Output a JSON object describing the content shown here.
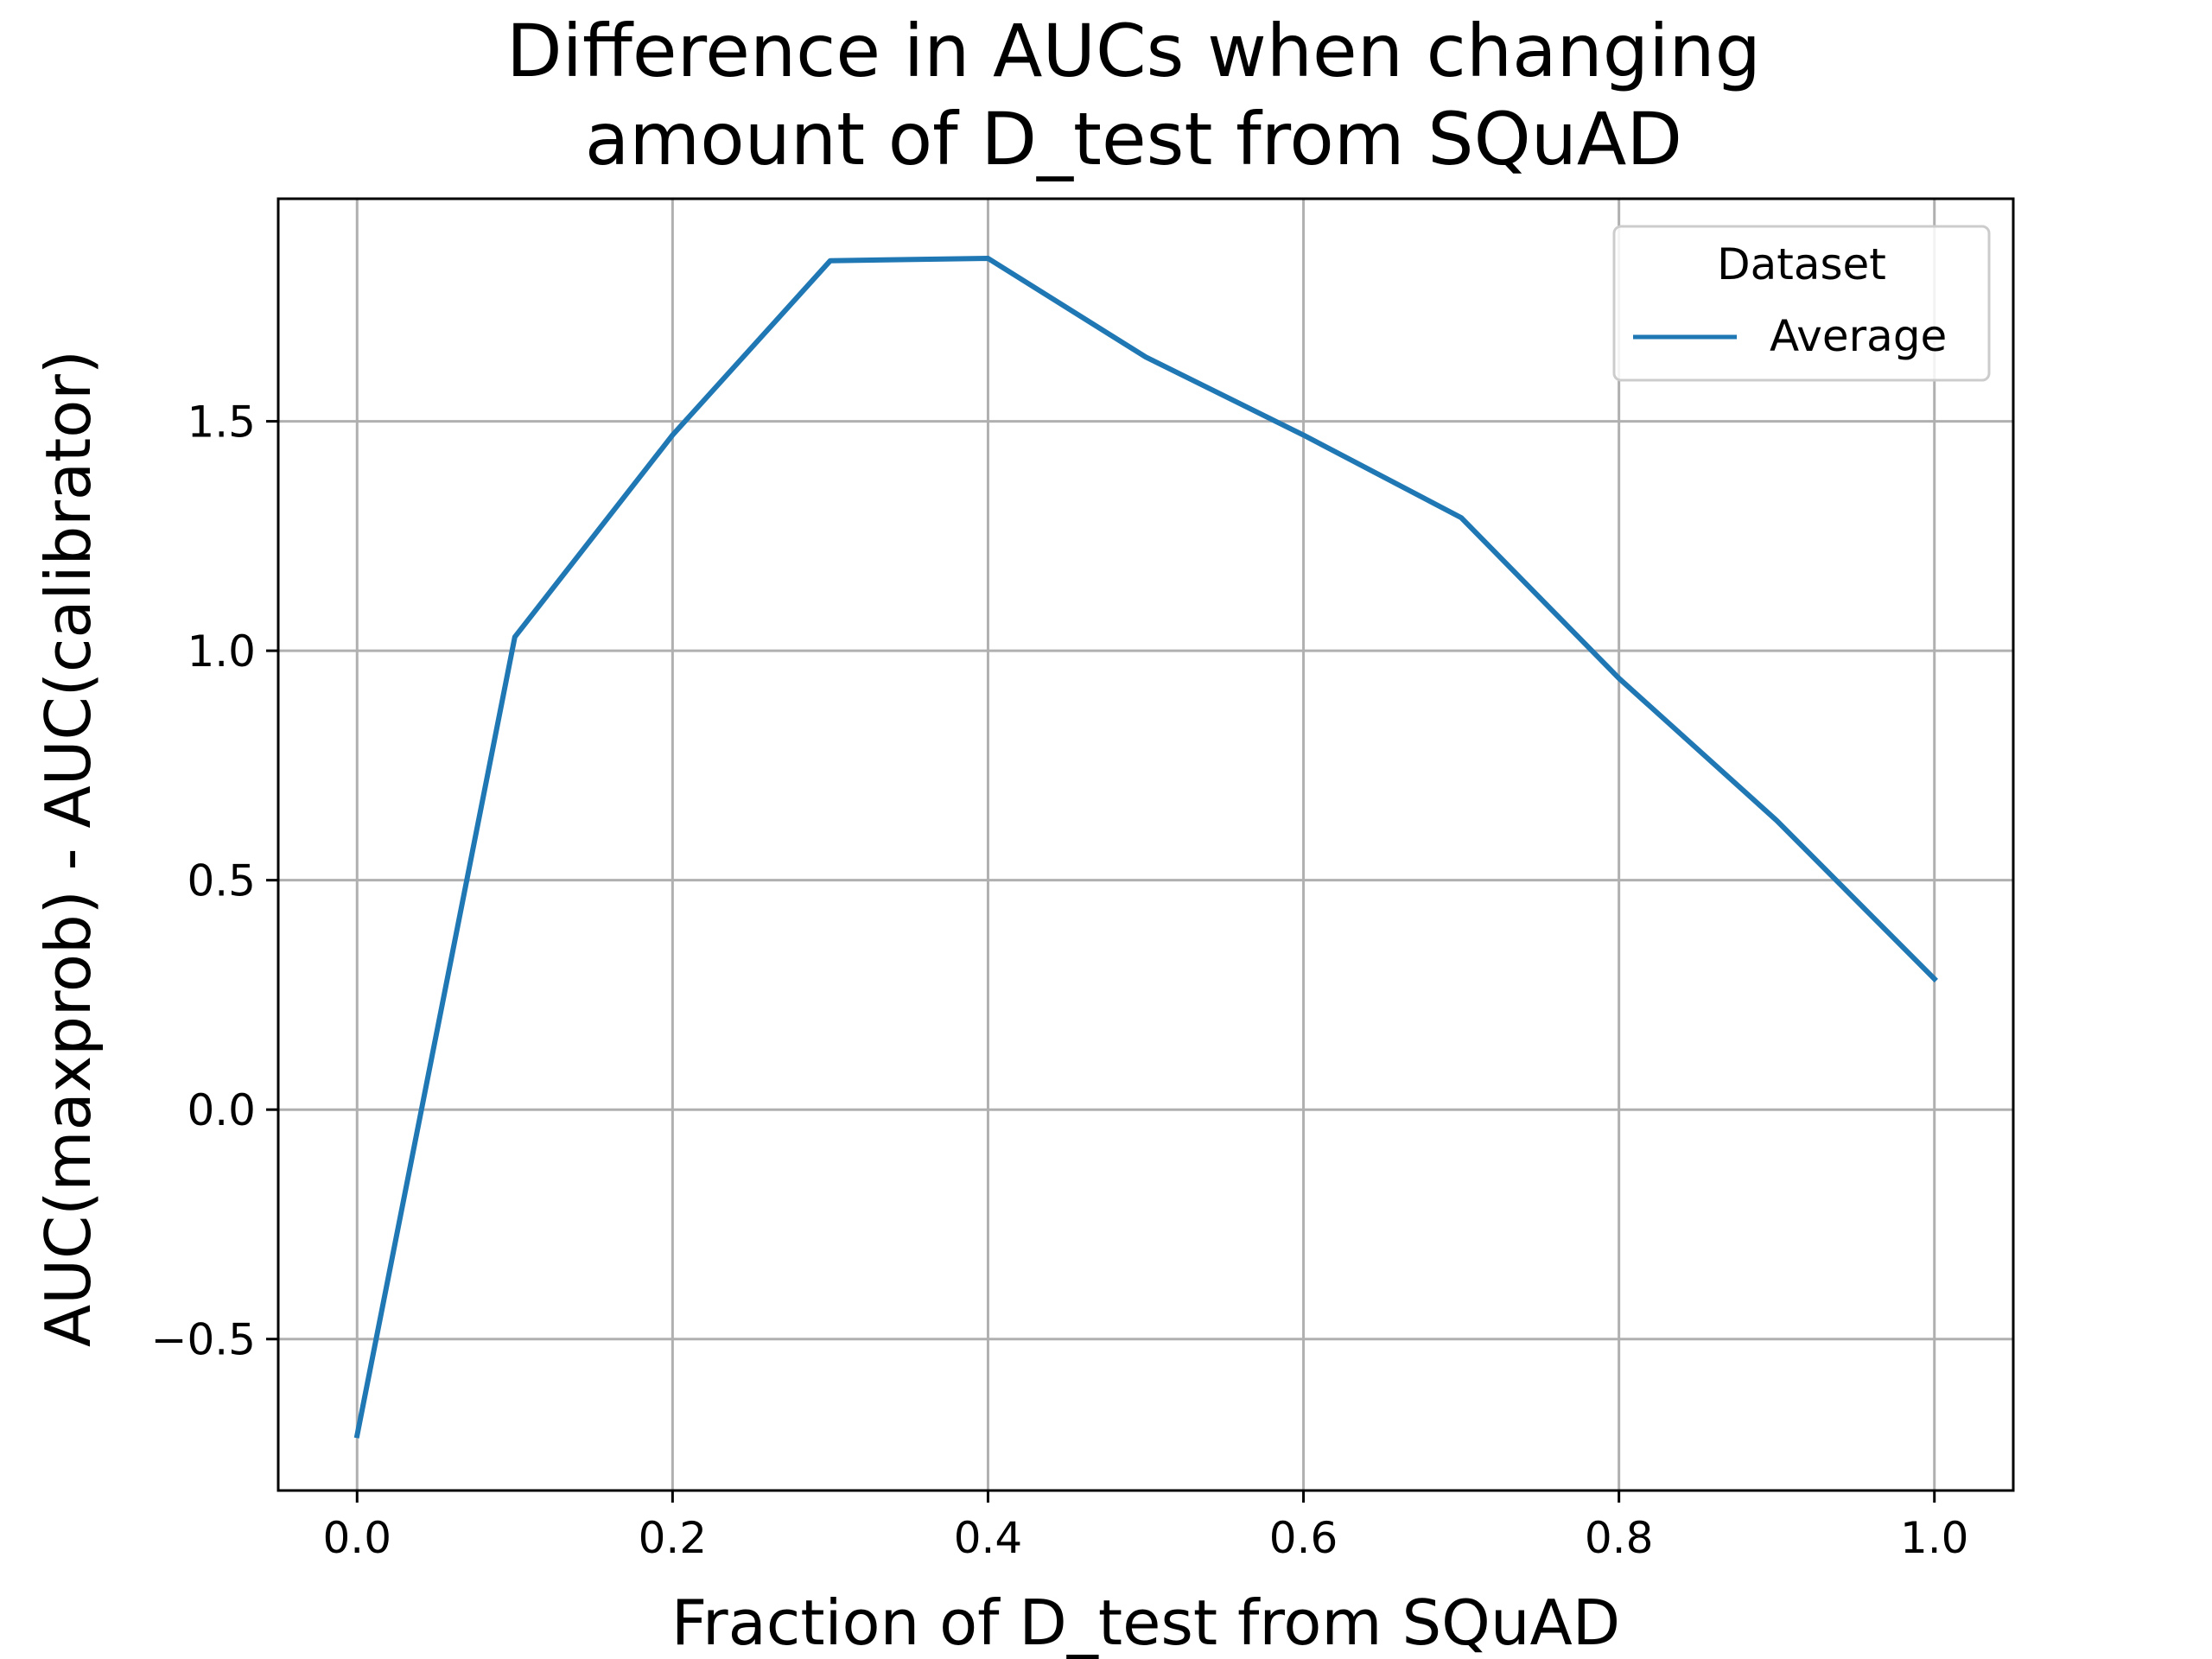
{
  "chart_data": {
    "type": "line",
    "title_lines": [
      "Difference in AUCs when changing",
      "amount of D_test from SQuAD"
    ],
    "xlabel": "Fraction of D_test from SQuAD",
    "ylabel": "AUC(maxprob) - AUC(calibrator)",
    "x": [
      0.0,
      0.1,
      0.2,
      0.3,
      0.4,
      0.5,
      0.6,
      0.7,
      0.8,
      0.9,
      1.0
    ],
    "series": [
      {
        "name": "Average",
        "color": "#1f77b4",
        "values": [
          -0.71,
          1.03,
          1.47,
          1.85,
          1.855,
          1.64,
          1.47,
          1.29,
          0.94,
          0.63,
          0.285
        ]
      }
    ],
    "xlim": [
      -0.05,
      1.05
    ],
    "ylim": [
      -0.83,
      1.985
    ],
    "xticks": [
      {
        "value": 0.0,
        "label": "0.0"
      },
      {
        "value": 0.2,
        "label": "0.2"
      },
      {
        "value": 0.4,
        "label": "0.4"
      },
      {
        "value": 0.6,
        "label": "0.6"
      },
      {
        "value": 0.8,
        "label": "0.8"
      },
      {
        "value": 1.0,
        "label": "1.0"
      }
    ],
    "yticks": [
      {
        "value": -0.5,
        "label": "−0.5"
      },
      {
        "value": 0.0,
        "label": "0.0"
      },
      {
        "value": 0.5,
        "label": "0.5"
      },
      {
        "value": 1.0,
        "label": "1.0"
      },
      {
        "value": 1.5,
        "label": "1.5"
      }
    ],
    "grid": true,
    "legend": {
      "title": "Dataset",
      "placement": "top-right"
    }
  }
}
